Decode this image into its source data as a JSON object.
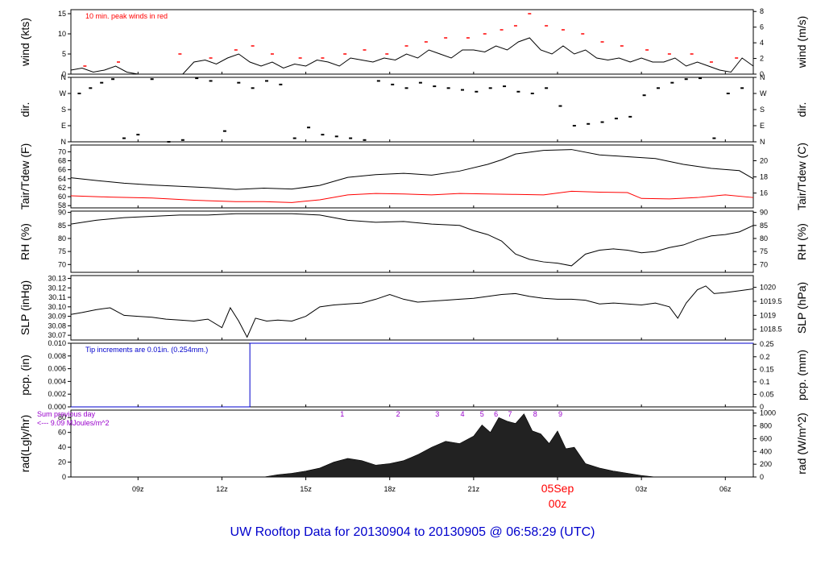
{
  "title": "UW Rooftop Data for 20130904  to  20130905 @ 06:58:29  (UTC)",
  "colors": {
    "line": "#000000",
    "peak": "#ff0000",
    "dew": "#ff0000",
    "precip": "#0000cc",
    "annot": "#9900cc",
    "title": "#0000cc",
    "date": "#ff0000"
  },
  "time_axis": {
    "unit": "hours since 2013-09-04 00z",
    "range": [
      6.6,
      31.0
    ],
    "ticks": [
      {
        "t": 9,
        "label": "09z"
      },
      {
        "t": 12,
        "label": "12z"
      },
      {
        "t": 15,
        "label": "15z"
      },
      {
        "t": 18,
        "label": "18z"
      },
      {
        "t": 21,
        "label": "21z"
      },
      {
        "t": 24,
        "label": "00z"
      },
      {
        "t": 27,
        "label": "03z"
      },
      {
        "t": 30,
        "label": "06z"
      }
    ],
    "date_label": "05Sep",
    "date_label_t": 24
  },
  "chart_data": [
    {
      "type": "line",
      "id": "wind",
      "ylabel": "wind (kts)",
      "ylabel_right": "wind (m/s)",
      "ylim": [
        0,
        16
      ],
      "ticks": [
        0,
        5,
        10,
        15
      ],
      "right_ticks": [
        0,
        2,
        4,
        6,
        8
      ],
      "right_scale": 0.5144,
      "annotation": "10 min. peak winds in red",
      "series": [
        {
          "name": "",
          "color": "#000000",
          "x": [
            6.6,
            7.0,
            7.4,
            7.8,
            8.2,
            8.6,
            9.0,
            9.4,
            9.8,
            10.2,
            10.6,
            11.0,
            11.4,
            11.8,
            12.2,
            12.6,
            13.0,
            13.4,
            13.8,
            14.2,
            14.6,
            15.0,
            15.4,
            15.8,
            16.2,
            16.6,
            17.0,
            17.4,
            17.8,
            18.2,
            18.6,
            19.0,
            19.4,
            19.8,
            20.2,
            20.6,
            21.0,
            21.4,
            21.8,
            22.2,
            22.6,
            23.0,
            23.4,
            23.8,
            24.2,
            24.6,
            25.0,
            25.4,
            25.8,
            26.2,
            26.6,
            27.0,
            27.4,
            27.8,
            28.2,
            28.6,
            29.0,
            29.4,
            29.8,
            30.2,
            30.6,
            31.0
          ],
          "y": [
            1,
            1.5,
            0.5,
            1,
            2,
            0.5,
            0,
            0,
            0,
            0,
            0,
            3,
            3.5,
            2.5,
            4,
            5,
            3,
            2,
            3,
            1.5,
            2.5,
            2,
            3.5,
            3,
            2,
            4,
            3.5,
            3,
            4,
            3.5,
            5,
            4,
            6,
            5,
            4,
            6,
            6,
            5.5,
            7,
            6,
            8,
            9,
            6,
            5,
            7,
            5,
            6,
            4,
            3.5,
            4,
            3,
            4,
            3,
            3,
            4,
            2,
            3,
            2,
            1,
            0.5,
            4,
            2
          ]
        },
        {
          "name": "",
          "color": "#ff0000",
          "style": "markers",
          "x": [
            7.1,
            8.3,
            10.5,
            11.6,
            12.5,
            13.1,
            13.8,
            14.8,
            15.6,
            16.4,
            17.1,
            17.9,
            18.6,
            19.3,
            20.0,
            20.8,
            21.4,
            22.0,
            22.5,
            23.0,
            23.6,
            24.2,
            24.9,
            25.6,
            26.3,
            27.2,
            28.0,
            28.8,
            29.5,
            30.4
          ],
          "y": [
            2,
            3,
            5,
            4,
            6,
            7,
            5,
            4,
            4,
            5,
            6,
            5,
            7,
            8,
            9,
            9,
            10,
            11,
            12,
            15,
            12,
            11,
            10,
            8,
            7,
            6,
            5,
            5,
            3,
            4
          ]
        }
      ]
    },
    {
      "type": "scatter",
      "id": "direction",
      "ylabel": "dir.",
      "ylabel_right": "dir.",
      "ylim": [
        0,
        360
      ],
      "tick_labels": [
        "N",
        "E",
        "S",
        "W",
        "N"
      ],
      "series": [
        {
          "name": "",
          "color": "#000000",
          "x": [
            6.9,
            7.3,
            7.7,
            8.1,
            8.5,
            9.0,
            9.5,
            10.1,
            10.6,
            11.1,
            11.6,
            12.1,
            12.6,
            13.1,
            13.6,
            14.1,
            14.6,
            15.1,
            15.6,
            16.1,
            16.6,
            17.1,
            17.6,
            18.1,
            18.6,
            19.1,
            19.6,
            20.1,
            20.6,
            21.1,
            21.6,
            22.1,
            22.6,
            23.1,
            23.6,
            24.1,
            24.6,
            25.1,
            25.6,
            26.1,
            26.6,
            27.1,
            27.6,
            28.1,
            28.6,
            29.1,
            29.6,
            30.1,
            30.6
          ],
          "y": [
            270,
            300,
            330,
            350,
            20,
            40,
            350,
            0,
            10,
            355,
            340,
            60,
            330,
            300,
            340,
            320,
            20,
            80,
            40,
            30,
            20,
            10,
            340,
            320,
            300,
            330,
            310,
            300,
            290,
            280,
            300,
            310,
            280,
            270,
            300,
            200,
            90,
            100,
            110,
            130,
            140,
            260,
            300,
            330,
            350,
            355,
            20,
            270,
            300
          ]
        }
      ]
    },
    {
      "type": "line",
      "id": "temperature",
      "ylabel": "Tair/Tdew (F)",
      "ylabel_right": "Tair/Tdew (C)",
      "ylim": [
        57.5,
        71.5
      ],
      "ticks": [
        58,
        60,
        62,
        64,
        66,
        68,
        70
      ],
      "right_ticks": [
        16,
        18,
        20
      ],
      "series": [
        {
          "name": "",
          "color": "#000000",
          "x": [
            6.6,
            7.5,
            8.5,
            9.5,
            10.5,
            11.5,
            12.5,
            13.5,
            14.5,
            15.5,
            16.5,
            17.5,
            18.5,
            19.5,
            20.5,
            21.5,
            22.0,
            22.5,
            23.5,
            24.5,
            25.5,
            26.5,
            27.5,
            28.5,
            29.5,
            30.5,
            31.0
          ],
          "y": [
            64.2,
            63.6,
            63,
            62.6,
            62.3,
            62,
            61.6,
            61.9,
            61.7,
            62.5,
            64.3,
            64.9,
            65.2,
            64.8,
            65.7,
            67.2,
            68.2,
            69.5,
            70.3,
            70.5,
            69.3,
            68.9,
            68.5,
            67.2,
            66.3,
            65.8,
            64
          ]
        },
        {
          "name": "",
          "color": "#ff0000",
          "x": [
            6.6,
            8.0,
            9.5,
            11.0,
            12.5,
            13.5,
            14.5,
            15.5,
            16.5,
            17.5,
            18.5,
            19.5,
            20.5,
            21.5,
            22.5,
            23.5,
            24.5,
            25.5,
            26.5,
            27.0,
            28.0,
            29.0,
            30.0,
            31.0
          ],
          "y": [
            60.2,
            59.9,
            59.7,
            59.2,
            58.9,
            58.9,
            58.7,
            59.3,
            60.4,
            60.7,
            60.6,
            60.4,
            60.7,
            60.6,
            60.5,
            60.4,
            61.2,
            61,
            60.9,
            59.6,
            59.5,
            59.8,
            60.4,
            59.8
          ]
        }
      ]
    },
    {
      "type": "line",
      "id": "humidity",
      "ylabel": "RH (%)",
      "ylabel_right": "RH (%)",
      "ylim": [
        67,
        90.5
      ],
      "ticks": [
        70,
        75,
        80,
        85,
        90
      ],
      "right_ticks": [
        70,
        75,
        80,
        85,
        90
      ],
      "series": [
        {
          "name": "",
          "color": "#000000",
          "x": [
            6.6,
            7.5,
            8.5,
            9.5,
            10.5,
            11.5,
            12.5,
            13.5,
            14.5,
            15.5,
            16.5,
            17.5,
            18.5,
            19.5,
            20.5,
            21.0,
            21.5,
            22.0,
            22.5,
            23.0,
            23.5,
            24.0,
            24.5,
            25.0,
            25.5,
            26.0,
            26.5,
            27.0,
            27.5,
            28.0,
            28.5,
            29.0,
            29.5,
            30.0,
            30.5,
            31.0
          ],
          "y": [
            85.5,
            87,
            88,
            88.5,
            89,
            89,
            89.5,
            89.5,
            89.5,
            89,
            87,
            86.2,
            86.5,
            85.5,
            85,
            83,
            81.5,
            79,
            74,
            72,
            71,
            70.5,
            69.5,
            74,
            75.5,
            76,
            75.5,
            74.5,
            75,
            76.5,
            77.5,
            79.5,
            81,
            81.5,
            82.5,
            85
          ]
        }
      ]
    },
    {
      "type": "line",
      "id": "pressure",
      "ylabel": "SLP (inHg)",
      "ylabel_right": "SLP (hPa)",
      "ylim": [
        30.065,
        30.133
      ],
      "ticks": [
        30.07,
        30.08,
        30.09,
        30.1,
        30.11,
        30.12,
        30.13
      ],
      "right_ticks": [
        1018.5,
        1019,
        1019.5,
        1020
      ],
      "series": [
        {
          "name": "",
          "color": "#000000",
          "x": [
            6.6,
            7.0,
            7.5,
            8.0,
            8.5,
            9.0,
            9.5,
            10.0,
            10.5,
            11.0,
            11.5,
            12.0,
            12.3,
            12.6,
            12.9,
            13.2,
            13.6,
            14.0,
            14.5,
            15.0,
            15.5,
            16.0,
            16.5,
            17.0,
            17.5,
            18.0,
            18.5,
            19.0,
            19.5,
            20.0,
            20.5,
            21.0,
            21.5,
            22.0,
            22.5,
            23.0,
            23.5,
            24.0,
            24.5,
            25.0,
            25.5,
            26.0,
            26.5,
            27.0,
            27.5,
            28.0,
            28.3,
            28.6,
            29.0,
            29.3,
            29.6,
            30.0,
            30.5,
            31.0
          ],
          "y": [
            30.092,
            30.094,
            30.097,
            30.099,
            30.091,
            30.09,
            30.089,
            30.087,
            30.086,
            30.085,
            30.087,
            30.078,
            30.099,
            30.085,
            30.068,
            30.088,
            30.085,
            30.086,
            30.085,
            30.09,
            30.1,
            30.102,
            30.103,
            30.104,
            30.108,
            30.113,
            30.108,
            30.105,
            30.106,
            30.107,
            30.108,
            30.109,
            30.111,
            30.113,
            30.114,
            30.111,
            30.109,
            30.108,
            30.108,
            30.107,
            30.103,
            30.104,
            30.103,
            30.102,
            30.104,
            30.1,
            30.088,
            30.104,
            30.118,
            30.122,
            30.114,
            30.115,
            30.117,
            30.119
          ]
        }
      ]
    },
    {
      "type": "line",
      "id": "precipitation",
      "ylabel": "pcp. (in)",
      "ylabel_right": "pcp. (mm)",
      "ylim": [
        0,
        0.01
      ],
      "ticks": [
        0,
        0.002,
        0.004,
        0.006,
        0.008,
        0.01
      ],
      "right_ticks": [
        0,
        0.05,
        0.1,
        0.15,
        0.2,
        0.25
      ],
      "annotation": "Tip increments are 0.01in. (0.254mm.)",
      "series": [
        {
          "name": "",
          "color": "#0000cc",
          "style": "step",
          "x": [
            6.6,
            13.0,
            13.0,
            31.0
          ],
          "y": [
            0,
            0,
            0.01,
            0.01
          ]
        }
      ]
    },
    {
      "type": "area",
      "id": "radiation",
      "ylabel": "rad(Lgly/hr)",
      "ylabel_right": "rad (W/m^2)",
      "ylim": [
        0,
        90
      ],
      "ticks": [
        0,
        20,
        40,
        60,
        80
      ],
      "right_ticks": [
        0,
        200,
        400,
        600,
        800,
        1000
      ],
      "right_scale": 11.63,
      "annotation_line1": "Sum previous day",
      "annotation_line2": "<--- 9.09 MJoules/m^2",
      "hour_marks": [
        {
          "t": 16.3,
          "label": "1"
        },
        {
          "t": 18.3,
          "label": "2"
        },
        {
          "t": 19.7,
          "label": "3"
        },
        {
          "t": 20.6,
          "label": "4"
        },
        {
          "t": 21.3,
          "label": "5"
        },
        {
          "t": 21.8,
          "label": "6"
        },
        {
          "t": 22.3,
          "label": "7"
        },
        {
          "t": 23.2,
          "label": "8"
        },
        {
          "t": 24.1,
          "label": "9"
        }
      ],
      "series": [
        {
          "name": "",
          "color": "#000000",
          "x": [
            6.6,
            13.5,
            14.0,
            14.5,
            15.0,
            15.5,
            16.0,
            16.5,
            17.0,
            17.5,
            18.0,
            18.5,
            19.0,
            19.5,
            20.0,
            20.5,
            21.0,
            21.3,
            21.6,
            21.9,
            22.2,
            22.5,
            22.8,
            23.1,
            23.4,
            23.7,
            24.0,
            24.3,
            24.6,
            25.0,
            25.5,
            26.0,
            26.5,
            27.0,
            27.5,
            31.0
          ],
          "y": [
            0,
            0,
            3,
            5,
            8,
            12,
            20,
            25,
            22,
            16,
            18,
            22,
            30,
            40,
            48,
            45,
            55,
            70,
            60,
            80,
            75,
            72,
            85,
            62,
            58,
            45,
            62,
            38,
            40,
            18,
            12,
            8,
            5,
            2,
            0,
            0
          ]
        }
      ]
    }
  ]
}
